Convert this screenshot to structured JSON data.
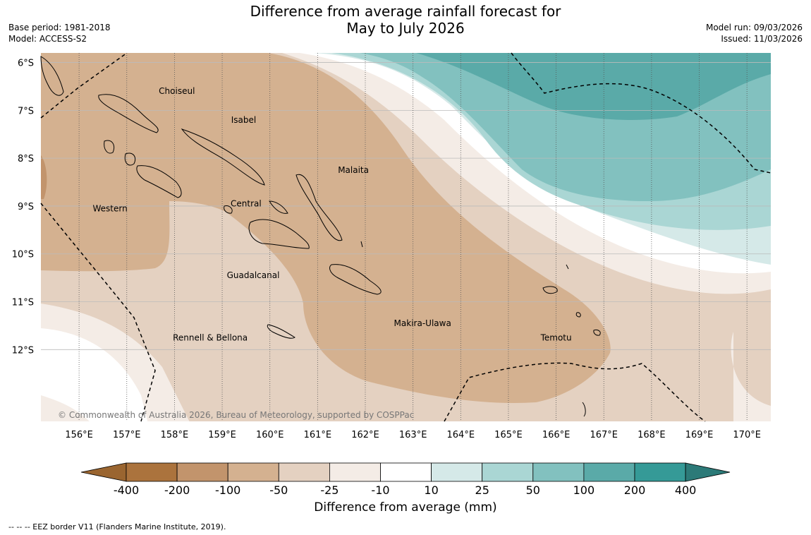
{
  "title_line1": "Difference from average rainfall forecast for",
  "title_line2": "May to July 2026",
  "meta_left": {
    "base_period": "Base period: 1981-2018",
    "model": "Model: ACCESS-S2"
  },
  "meta_right": {
    "model_run": "Model run: 09/03/2026",
    "issued": "Issued: 11/03/2026"
  },
  "map": {
    "lat_labels": [
      "6°S",
      "7°S",
      "8°S",
      "9°S",
      "10°S",
      "11°S",
      "12°S"
    ],
    "lon_labels": [
      "156°E",
      "157°E",
      "158°E",
      "159°E",
      "160°E",
      "161°E",
      "162°E",
      "163°E",
      "164°E",
      "165°E",
      "166°E",
      "167°E",
      "168°E",
      "169°E",
      "170°E"
    ],
    "regions": [
      "Choiseul",
      "Isabel",
      "Malaita",
      "Western",
      "Central",
      "Guadalcanal",
      "Makira-Ulawa",
      "Rennell & Bellona",
      "Temotu"
    ],
    "copyright": "© Commonwealth of Australia 2026, Bureau of Meteorology, supported by COSPPac"
  },
  "colorbar": {
    "title": "Difference from average (mm)",
    "ticks": [
      "-400",
      "-200",
      "-100",
      "-50",
      "-25",
      "-10",
      "10",
      "25",
      "50",
      "100",
      "200",
      "400"
    ],
    "colors": [
      "#ab733d",
      "#c2946c",
      "#d4b190",
      "#e4d1c1",
      "#f4ece6",
      "#ffffff",
      "#d5e9e8",
      "#aad6d4",
      "#82c1bf",
      "#5aaaa8",
      "#359a97"
    ],
    "end_colors": {
      "low": "#9a6530",
      "high": "#2c7a78"
    }
  },
  "footnote": "--  --  -- EEZ border V11 (Flanders Marine Institute, 2019)."
}
